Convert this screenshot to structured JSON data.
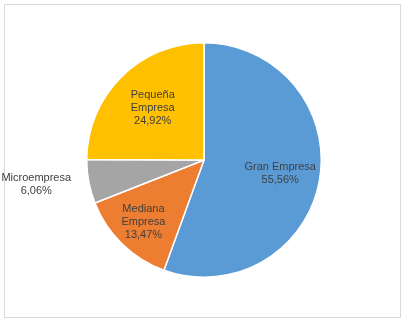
{
  "chart_data": {
    "type": "pie",
    "categories": [
      "Gran Empresa",
      "Mediana Empresa",
      "Microempresa",
      "Pequeña Empresa"
    ],
    "values": [
      55.56,
      13.47,
      6.06,
      24.92
    ],
    "value_labels": [
      "55,56%",
      "13,47%",
      "6,06%",
      "24,92%"
    ],
    "colors": [
      "#5b9bd5",
      "#ed7d31",
      "#a5a5a5",
      "#ffc000"
    ],
    "data_labels": true
  }
}
